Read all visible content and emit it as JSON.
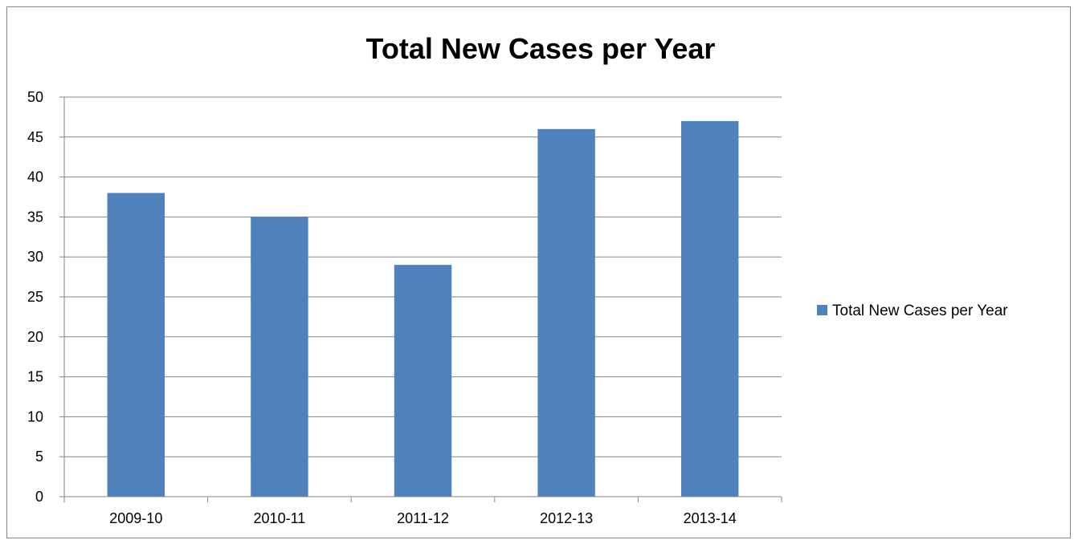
{
  "chart_data": {
    "type": "bar",
    "title": "Total New Cases per Year",
    "categories": [
      "2009-10",
      "2010-11",
      "2011-12",
      "2012-13",
      "2013-14"
    ],
    "series": [
      {
        "name": "Total New Cases per Year",
        "values": [
          38,
          35,
          29,
          46,
          47
        ],
        "color": "#4f81bd"
      }
    ],
    "ylim": [
      0,
      50
    ],
    "yticks": [
      0,
      5,
      10,
      15,
      20,
      25,
      30,
      35,
      40,
      45,
      50
    ],
    "xlabel": "",
    "ylabel": "",
    "grid": true,
    "legend_position": "right"
  }
}
